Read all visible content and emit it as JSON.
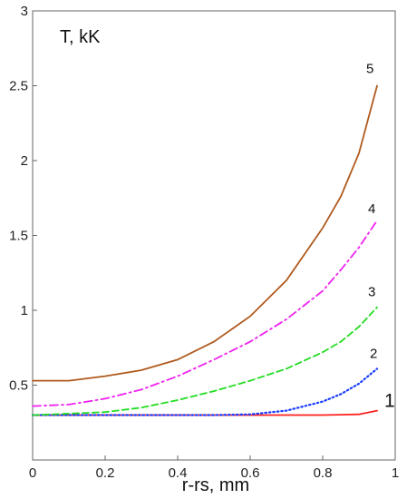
{
  "chart_data": {
    "type": "line",
    "title": "",
    "xlabel": "r-rs, mm",
    "ylabel": "T, kK",
    "xlim": [
      0,
      1
    ],
    "ylim": [
      0,
      3
    ],
    "xticks": [
      "0",
      "0.2",
      "0.4",
      "0.6",
      "0.8",
      "1"
    ],
    "yticks": [
      "0.5",
      "1",
      "1.5",
      "2",
      "2.5",
      "3"
    ],
    "grid": false,
    "legend": "none",
    "series": [
      {
        "name": "1",
        "color": "#ff2020",
        "style": "solid",
        "x": [
          0,
          0.2,
          0.4,
          0.6,
          0.8,
          0.9,
          0.95
        ],
        "y": [
          0.3,
          0.3,
          0.3,
          0.3,
          0.3,
          0.305,
          0.33
        ]
      },
      {
        "name": "2",
        "color": "#1a3cff",
        "style": "dotted",
        "x": [
          0,
          0.2,
          0.4,
          0.5,
          0.6,
          0.7,
          0.8,
          0.85,
          0.9,
          0.95
        ],
        "y": [
          0.3,
          0.3,
          0.3,
          0.3,
          0.305,
          0.33,
          0.39,
          0.44,
          0.51,
          0.61
        ]
      },
      {
        "name": "3",
        "color": "#22dd22",
        "style": "dashed",
        "x": [
          0,
          0.1,
          0.2,
          0.3,
          0.4,
          0.5,
          0.6,
          0.7,
          0.8,
          0.85,
          0.9,
          0.95
        ],
        "y": [
          0.3,
          0.31,
          0.32,
          0.35,
          0.4,
          0.46,
          0.53,
          0.61,
          0.72,
          0.79,
          0.89,
          1.02
        ]
      },
      {
        "name": "4",
        "color": "#ee22ee",
        "style": "dashdot",
        "x": [
          0,
          0.1,
          0.2,
          0.3,
          0.4,
          0.5,
          0.6,
          0.7,
          0.8,
          0.85,
          0.9,
          0.95
        ],
        "y": [
          0.36,
          0.37,
          0.41,
          0.47,
          0.56,
          0.67,
          0.79,
          0.94,
          1.13,
          1.27,
          1.42,
          1.6
        ]
      },
      {
        "name": "5",
        "color": "#b05a1e",
        "style": "solid",
        "x": [
          0,
          0.1,
          0.2,
          0.3,
          0.4,
          0.5,
          0.6,
          0.7,
          0.8,
          0.85,
          0.9,
          0.95
        ],
        "y": [
          0.53,
          0.53,
          0.56,
          0.6,
          0.67,
          0.79,
          0.96,
          1.2,
          1.55,
          1.76,
          2.05,
          2.5
        ]
      }
    ]
  }
}
